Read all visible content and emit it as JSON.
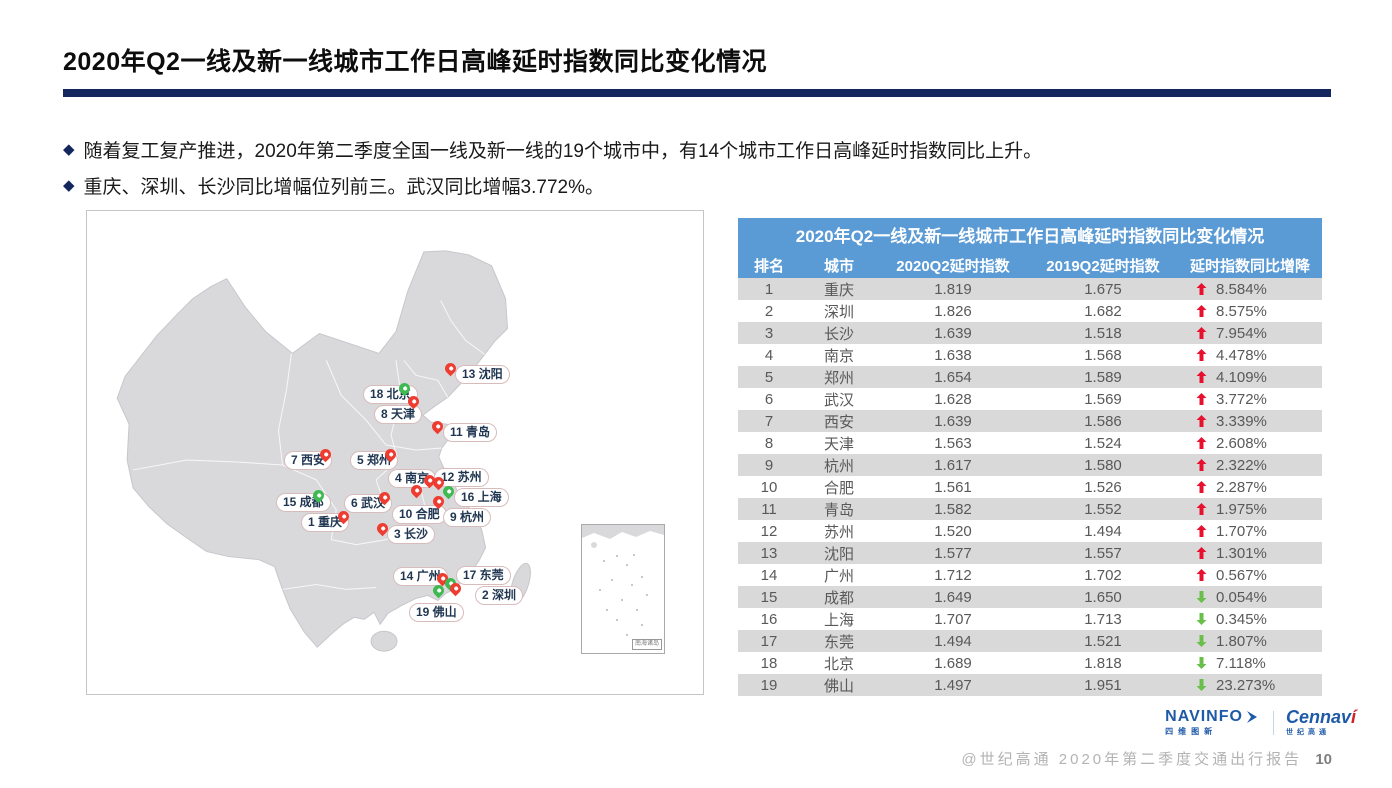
{
  "page": {
    "title": "2020年Q2一线及新一线城市工作日高峰延时指数同比变化情况",
    "bullets": [
      "随着复工复产推进，2020年第二季度全国一线及新一线的19个城市中，有14个城市工作日高峰延时指数同比上升。",
      "重庆、深圳、长沙同比增幅位列前三。武汉同比增幅3.772%。"
    ],
    "footer": {
      "copyright": "@世纪高通",
      "report_title": "2020年第二季度交通出行报告",
      "page_number": "10"
    },
    "logos": {
      "navinfo_name": "NAVINFO",
      "navinfo_sub": "四维图新",
      "cennavi_name": "Cennav",
      "cennavi_accent": "í",
      "cennavi_sub": "世纪高通"
    }
  },
  "map": {
    "inset_label": "南海诸岛",
    "pins": [
      {
        "rank": 13,
        "city": "沈阳",
        "direction": "up",
        "pin": [
          363,
          161
        ],
        "label": [
          368,
          154
        ]
      },
      {
        "rank": 18,
        "city": "北京",
        "direction": "down",
        "pin": [
          317,
          181
        ],
        "label": [
          276,
          174
        ]
      },
      {
        "rank": 8,
        "city": "天津",
        "direction": "up",
        "pin": [
          326,
          194
        ],
        "label": [
          287,
          194
        ]
      },
      {
        "rank": 11,
        "city": "青岛",
        "direction": "up",
        "pin": [
          350,
          219
        ],
        "label": [
          356,
          212
        ]
      },
      {
        "rank": 7,
        "city": "西安",
        "direction": "up",
        "pin": [
          238,
          247
        ],
        "label": [
          197,
          240
        ]
      },
      {
        "rank": 5,
        "city": "郑州",
        "direction": "up",
        "pin": [
          303,
          247
        ],
        "label": [
          263,
          240
        ]
      },
      {
        "rank": 4,
        "city": "南京",
        "direction": "up",
        "pin": [
          342,
          273
        ],
        "label": [
          301,
          258
        ]
      },
      {
        "rank": 12,
        "city": "苏州",
        "direction": "up",
        "pin": [
          351,
          275
        ],
        "label": [
          347,
          257
        ]
      },
      {
        "rank": 16,
        "city": "上海",
        "direction": "down",
        "pin": [
          361,
          284
        ],
        "label": [
          367,
          277
        ]
      },
      {
        "rank": 15,
        "city": "成都",
        "direction": "down",
        "pin": [
          231,
          288
        ],
        "label": [
          189,
          282
        ]
      },
      {
        "rank": 6,
        "city": "武汉",
        "direction": "up",
        "pin": [
          297,
          290
        ],
        "label": [
          257,
          283
        ]
      },
      {
        "rank": 10,
        "city": "合肥",
        "direction": "up",
        "pin": [
          329,
          283
        ],
        "label": [
          305,
          294
        ]
      },
      {
        "rank": 9,
        "city": "杭州",
        "direction": "up",
        "pin": [
          351,
          294
        ],
        "label": [
          356,
          297
        ]
      },
      {
        "rank": 1,
        "city": "重庆",
        "direction": "up",
        "pin": [
          256,
          309
        ],
        "label": [
          214,
          302
        ]
      },
      {
        "rank": 3,
        "city": "长沙",
        "direction": "up",
        "pin": [
          295,
          321
        ],
        "label": [
          300,
          314
        ]
      },
      {
        "rank": 14,
        "city": "广州",
        "direction": "up",
        "pin": [
          355,
          371
        ],
        "label": [
          306,
          356
        ]
      },
      {
        "rank": 17,
        "city": "东莞",
        "direction": "down",
        "pin": [
          363,
          376
        ],
        "label": [
          369,
          355
        ]
      },
      {
        "rank": 2,
        "city": "深圳",
        "direction": "up",
        "pin": [
          368,
          381
        ],
        "label": [
          388,
          375
        ]
      },
      {
        "rank": 19,
        "city": "佛山",
        "direction": "down",
        "pin": [
          351,
          383
        ],
        "label": [
          322,
          392
        ]
      }
    ]
  },
  "table": {
    "title": "2020年Q2一线及新一线城市工作日高峰延时指数同比变化情况",
    "columns": [
      "排名",
      "城市",
      "2020Q2延时指数",
      "2019Q2延时指数",
      "延时指数同比增降"
    ],
    "rows": [
      {
        "rank": "1",
        "city": "重庆",
        "q2_2020": "1.819",
        "q2_2019": "1.675",
        "direction": "up",
        "change": "8.584%"
      },
      {
        "rank": "2",
        "city": "深圳",
        "q2_2020": "1.826",
        "q2_2019": "1.682",
        "direction": "up",
        "change": "8.575%"
      },
      {
        "rank": "3",
        "city": "长沙",
        "q2_2020": "1.639",
        "q2_2019": "1.518",
        "direction": "up",
        "change": "7.954%"
      },
      {
        "rank": "4",
        "city": "南京",
        "q2_2020": "1.638",
        "q2_2019": "1.568",
        "direction": "up",
        "change": "4.478%"
      },
      {
        "rank": "5",
        "city": "郑州",
        "q2_2020": "1.654",
        "q2_2019": "1.589",
        "direction": "up",
        "change": "4.109%"
      },
      {
        "rank": "6",
        "city": "武汉",
        "q2_2020": "1.628",
        "q2_2019": "1.569",
        "direction": "up",
        "change": "3.772%"
      },
      {
        "rank": "7",
        "city": "西安",
        "q2_2020": "1.639",
        "q2_2019": "1.586",
        "direction": "up",
        "change": "3.339%"
      },
      {
        "rank": "8",
        "city": "天津",
        "q2_2020": "1.563",
        "q2_2019": "1.524",
        "direction": "up",
        "change": "2.608%"
      },
      {
        "rank": "9",
        "city": "杭州",
        "q2_2020": "1.617",
        "q2_2019": "1.580",
        "direction": "up",
        "change": "2.322%"
      },
      {
        "rank": "10",
        "city": "合肥",
        "q2_2020": "1.561",
        "q2_2019": "1.526",
        "direction": "up",
        "change": "2.287%"
      },
      {
        "rank": "11",
        "city": "青岛",
        "q2_2020": "1.582",
        "q2_2019": "1.552",
        "direction": "up",
        "change": "1.975%"
      },
      {
        "rank": "12",
        "city": "苏州",
        "q2_2020": "1.520",
        "q2_2019": "1.494",
        "direction": "up",
        "change": "1.707%"
      },
      {
        "rank": "13",
        "city": "沈阳",
        "q2_2020": "1.577",
        "q2_2019": "1.557",
        "direction": "up",
        "change": "1.301%"
      },
      {
        "rank": "14",
        "city": "广州",
        "q2_2020": "1.712",
        "q2_2019": "1.702",
        "direction": "up",
        "change": "0.567%"
      },
      {
        "rank": "15",
        "city": "成都",
        "q2_2020": "1.649",
        "q2_2019": "1.650",
        "direction": "down",
        "change": "0.054%"
      },
      {
        "rank": "16",
        "city": "上海",
        "q2_2020": "1.707",
        "q2_2019": "1.713",
        "direction": "down",
        "change": "0.345%"
      },
      {
        "rank": "17",
        "city": "东莞",
        "q2_2020": "1.494",
        "q2_2019": "1.521",
        "direction": "down",
        "change": "1.807%"
      },
      {
        "rank": "18",
        "city": "北京",
        "q2_2020": "1.689",
        "q2_2019": "1.818",
        "direction": "down",
        "change": "7.118%"
      },
      {
        "rank": "19",
        "city": "佛山",
        "q2_2020": "1.497",
        "q2_2019": "1.951",
        "direction": "down",
        "change": "23.273%"
      }
    ]
  },
  "colors": {
    "header_blue": "#5B9BD5",
    "row_shade_grey": "#D9D9D9",
    "navy_rule": "#14265E",
    "up_red": "#E8112D",
    "down_green": "#6ABF4B",
    "pin_red": "#EE3C31",
    "pin_green": "#3FB951"
  }
}
